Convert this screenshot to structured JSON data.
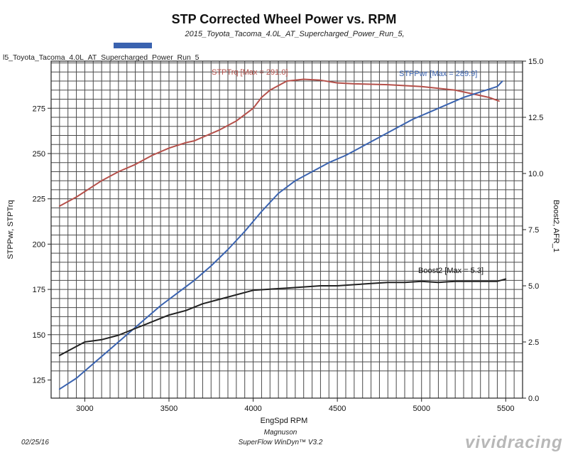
{
  "header": {
    "title": "STP Corrected Wheel Power vs. RPM",
    "subtitle": "2015_Toyota_Tacoma_4.0L_AT_Supercharged_Power_Run_5,",
    "run_label": "l5_Toyota_Tacoma_4.0L_AT_Supercharged_Power_Run_5",
    "legend_swatch_color": "#3a63b0"
  },
  "footer": {
    "date": "02/25/16",
    "company": "Magnuson",
    "software": "SuperFlow WinDyn™ V3.2",
    "logo": "vividracing"
  },
  "chart_data": {
    "type": "line",
    "title": "STP Corrected Wheel Power vs. RPM",
    "subtitle": "2015_Toyota_Tacoma_4.0L_AT_Supercharged_Power_Run_5,",
    "xlabel": "EngSpd RPM",
    "ylabel_left": "STPPwr, STPTrq",
    "ylabel_right": "Boost2, AFR_1",
    "xlim": [
      2800,
      5600
    ],
    "ylim_left": [
      115,
      301
    ],
    "ylim_right": [
      0,
      15
    ],
    "x_ticks": [
      3000,
      3500,
      4000,
      4500,
      5000,
      5500
    ],
    "x_tick_labels": [
      "3000",
      "3500",
      "4000",
      "4500",
      "5000",
      "5500"
    ],
    "y_ticks_left": [
      125,
      150,
      175,
      200,
      225,
      250,
      275
    ],
    "y_tick_labels_left": [
      "125",
      "150",
      "175",
      "200",
      "225",
      "250",
      "275"
    ],
    "y_ticks_right": [
      0,
      2.5,
      5,
      7.5,
      10,
      12.5,
      15
    ],
    "y_tick_labels_right": [
      "0.0",
      "2.5",
      "5.0",
      "7.5",
      "10.0",
      "12.5",
      "15.0"
    ],
    "grid": true,
    "series": [
      {
        "name": "STPTrq",
        "axis": "left",
        "color": "#b5504a",
        "label": "STPTrq [Max = 291.0]",
        "x": [
          2850,
          2950,
          3050,
          3100,
          3200,
          3300,
          3400,
          3500,
          3600,
          3650,
          3700,
          3800,
          3900,
          4000,
          4050,
          4100,
          4200,
          4300,
          4400,
          4500,
          4600,
          4800,
          5000,
          5100,
          5200,
          5300,
          5400,
          5460
        ],
        "y": [
          221,
          226,
          232,
          235,
          240,
          244,
          249,
          253,
          256,
          257,
          259,
          263,
          268,
          275,
          281,
          285,
          290,
          291,
          290.5,
          289,
          288.5,
          288,
          287,
          286,
          285,
          283,
          281,
          279
        ]
      },
      {
        "name": "STPPwr",
        "axis": "left",
        "color": "#3a63b0",
        "label": "STPPwr [Max = 289.9]",
        "x": [
          2850,
          2950,
          3050,
          3150,
          3250,
          3350,
          3450,
          3550,
          3650,
          3750,
          3850,
          3950,
          4050,
          4150,
          4250,
          4350,
          4450,
          4550,
          4650,
          4750,
          4850,
          4950,
          5050,
          5150,
          5250,
          5350,
          5450,
          5480
        ],
        "y": [
          120,
          126,
          134,
          142,
          150,
          158,
          166,
          173,
          180,
          188,
          197,
          207,
          218,
          228,
          235,
          240,
          245,
          249,
          254,
          259,
          264,
          269,
          273,
          277,
          281,
          284,
          287,
          289.9
        ]
      },
      {
        "name": "Boost2",
        "axis": "right",
        "color": "#222222",
        "label": "Boost2 [Max = 5.3]",
        "x": [
          2850,
          2900,
          3000,
          3100,
          3200,
          3300,
          3400,
          3500,
          3600,
          3700,
          3800,
          3900,
          4000,
          4100,
          4200,
          4300,
          4400,
          4500,
          4600,
          4700,
          4800,
          4900,
          5000,
          5100,
          5200,
          5300,
          5400,
          5450,
          5500
        ],
        "y": [
          1.9,
          2.1,
          2.5,
          2.6,
          2.8,
          3.1,
          3.4,
          3.7,
          3.9,
          4.2,
          4.4,
          4.6,
          4.8,
          4.85,
          4.9,
          4.95,
          5.0,
          5.0,
          5.05,
          5.1,
          5.15,
          5.15,
          5.2,
          5.15,
          5.2,
          5.2,
          5.2,
          5.2,
          5.3
        ]
      }
    ]
  }
}
